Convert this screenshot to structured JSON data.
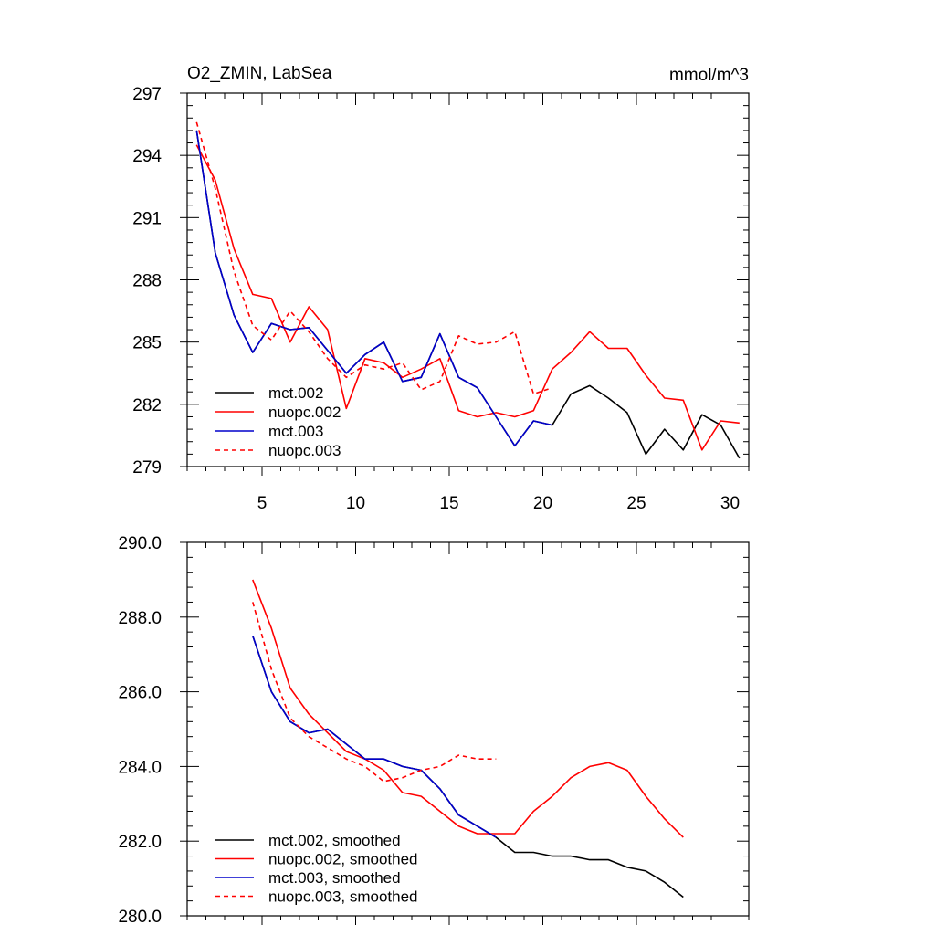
{
  "chart_data": [
    {
      "type": "line",
      "title": "O2_ZMIN, LabSea",
      "units": "mmol/m^3",
      "xlabel": "",
      "ylabel": "",
      "xlim": [
        1,
        31
      ],
      "ylim": [
        279,
        297
      ],
      "xticks": [
        5,
        10,
        15,
        20,
        25,
        30
      ],
      "yticks": [
        279,
        282,
        285,
        288,
        291,
        294,
        297
      ],
      "ytick_labels": [
        "279",
        "282",
        "285",
        "288",
        "291",
        "294",
        "297"
      ],
      "legend_position": "bottom-left",
      "series": [
        {
          "name": "mct.002",
          "color": "#000000",
          "dash": "solid",
          "x": [
            1.5,
            2.5,
            3.5,
            4.5,
            5.5,
            6.5,
            7.5,
            8.5,
            9.5,
            10.5,
            11.5,
            12.5,
            13.5,
            14.5,
            15.5,
            16.5,
            17.5,
            18.5,
            19.5,
            20.5,
            21.5,
            22.5,
            23.5,
            24.5,
            25.5,
            26.5,
            27.5,
            28.5,
            29.5,
            30.5
          ],
          "y": [
            295.2,
            289.3,
            286.3,
            284.5,
            285.9,
            285.6,
            285.7,
            284.6,
            283.5,
            284.4,
            285.0,
            283.1,
            283.3,
            285.4,
            283.3,
            282.8,
            281.4,
            280.0,
            281.2,
            281.0,
            282.5,
            282.9,
            282.3,
            281.6,
            279.6,
            280.8,
            279.8,
            281.5,
            281.0,
            279.4
          ]
        },
        {
          "name": "nuopc.002",
          "color": "#ff0000",
          "dash": "solid",
          "x": [
            1.5,
            2.5,
            3.5,
            4.5,
            5.5,
            6.5,
            7.5,
            8.5,
            9.5,
            10.5,
            11.5,
            12.5,
            13.5,
            14.5,
            15.5,
            16.5,
            17.5,
            18.5,
            19.5,
            20.5,
            21.5,
            22.5,
            23.5,
            24.5,
            25.5,
            26.5,
            27.5,
            28.5,
            29.5,
            30.5
          ],
          "y": [
            294.5,
            292.8,
            289.5,
            287.3,
            287.1,
            285.0,
            286.7,
            285.6,
            281.8,
            284.2,
            284.0,
            283.3,
            283.7,
            284.2,
            281.7,
            281.4,
            281.6,
            281.4,
            281.7,
            283.7,
            284.5,
            285.5,
            284.7,
            284.7,
            283.4,
            282.3,
            282.2,
            279.8,
            281.2,
            281.1
          ]
        },
        {
          "name": "mct.003",
          "color": "#0000cc",
          "dash": "solid",
          "x": [
            1.5,
            2.5,
            3.5,
            4.5,
            5.5,
            6.5,
            7.5,
            8.5,
            9.5,
            10.5,
            11.5,
            12.5,
            13.5,
            14.5,
            15.5,
            16.5,
            17.5,
            18.5,
            19.5,
            20.5
          ],
          "y": [
            295.2,
            289.3,
            286.3,
            284.5,
            285.9,
            285.6,
            285.7,
            284.6,
            283.5,
            284.4,
            285.0,
            283.1,
            283.3,
            285.4,
            283.3,
            282.8,
            281.4,
            280.0,
            281.2,
            281.0
          ]
        },
        {
          "name": "nuopc.003",
          "color": "#ff0000",
          "dash": "dashed",
          "x": [
            1.5,
            2.5,
            3.5,
            4.5,
            5.5,
            6.5,
            7.5,
            8.5,
            9.5,
            10.5,
            11.5,
            12.5,
            13.5,
            14.5,
            15.5,
            16.5,
            17.5,
            18.5,
            19.5,
            20.5
          ],
          "y": [
            295.6,
            292.4,
            288.4,
            285.8,
            285.1,
            286.5,
            285.5,
            284.2,
            283.3,
            283.9,
            283.7,
            284.0,
            282.7,
            283.1,
            285.3,
            284.9,
            285.0,
            285.5,
            282.5,
            282.8
          ]
        }
      ]
    },
    {
      "type": "line",
      "title": "",
      "xlabel": "",
      "ylabel": "",
      "xlim": [
        1,
        31
      ],
      "ylim": [
        280,
        290
      ],
      "xticks": [
        5,
        10,
        15,
        20,
        25,
        30
      ],
      "yticks": [
        280,
        282,
        284,
        286,
        288,
        290
      ],
      "ytick_labels": [
        "280.0",
        "282.0",
        "284.0",
        "286.0",
        "288.0",
        "290.0"
      ],
      "legend_position": "bottom-left",
      "series": [
        {
          "name": "mct.002, smoothed",
          "color": "#000000",
          "dash": "solid",
          "x": [
            4.5,
            5.5,
            6.5,
            7.5,
            8.5,
            9.5,
            10.5,
            11.5,
            12.5,
            13.5,
            14.5,
            15.5,
            16.5,
            17.5,
            18.5,
            19.5,
            20.5,
            21.5,
            22.5,
            23.5,
            24.5,
            25.5,
            26.5,
            27.5
          ],
          "y": [
            287.5,
            286.0,
            285.2,
            284.9,
            285.0,
            284.6,
            284.2,
            284.2,
            284.0,
            283.9,
            283.4,
            282.7,
            282.4,
            282.1,
            281.7,
            281.7,
            281.6,
            281.6,
            281.5,
            281.5,
            281.3,
            281.2,
            280.9,
            280.5
          ]
        },
        {
          "name": "nuopc.002, smoothed",
          "color": "#ff0000",
          "dash": "solid",
          "x": [
            4.5,
            5.5,
            6.5,
            7.5,
            8.5,
            9.5,
            10.5,
            11.5,
            12.5,
            13.5,
            14.5,
            15.5,
            16.5,
            17.5,
            18.5,
            19.5,
            20.5,
            21.5,
            22.5,
            23.5,
            24.5,
            25.5,
            26.5,
            27.5
          ],
          "y": [
            289.0,
            287.7,
            286.1,
            285.4,
            284.9,
            284.4,
            284.2,
            283.9,
            283.3,
            283.2,
            282.8,
            282.4,
            282.2,
            282.2,
            282.2,
            282.8,
            283.2,
            283.7,
            284.0,
            284.1,
            283.9,
            283.2,
            282.6,
            282.1
          ]
        },
        {
          "name": "mct.003, smoothed",
          "color": "#0000cc",
          "dash": "solid",
          "x": [
            4.5,
            5.5,
            6.5,
            7.5,
            8.5,
            9.5,
            10.5,
            11.5,
            12.5,
            13.5,
            14.5,
            15.5,
            16.5,
            17.5
          ],
          "y": [
            287.5,
            286.0,
            285.2,
            284.9,
            285.0,
            284.6,
            284.2,
            284.2,
            284.0,
            283.9,
            283.4,
            282.7,
            282.4,
            282.1
          ]
        },
        {
          "name": "nuopc.003, smoothed",
          "color": "#ff0000",
          "dash": "dashed",
          "x": [
            4.5,
            5.5,
            6.5,
            7.5,
            8.5,
            9.5,
            10.5,
            11.5,
            12.5,
            13.5,
            14.5,
            15.5,
            16.5,
            17.5
          ],
          "y": [
            288.4,
            286.6,
            285.3,
            284.8,
            284.5,
            284.2,
            284.0,
            283.6,
            283.7,
            283.9,
            284.0,
            284.3,
            284.2,
            284.2
          ]
        }
      ]
    }
  ]
}
